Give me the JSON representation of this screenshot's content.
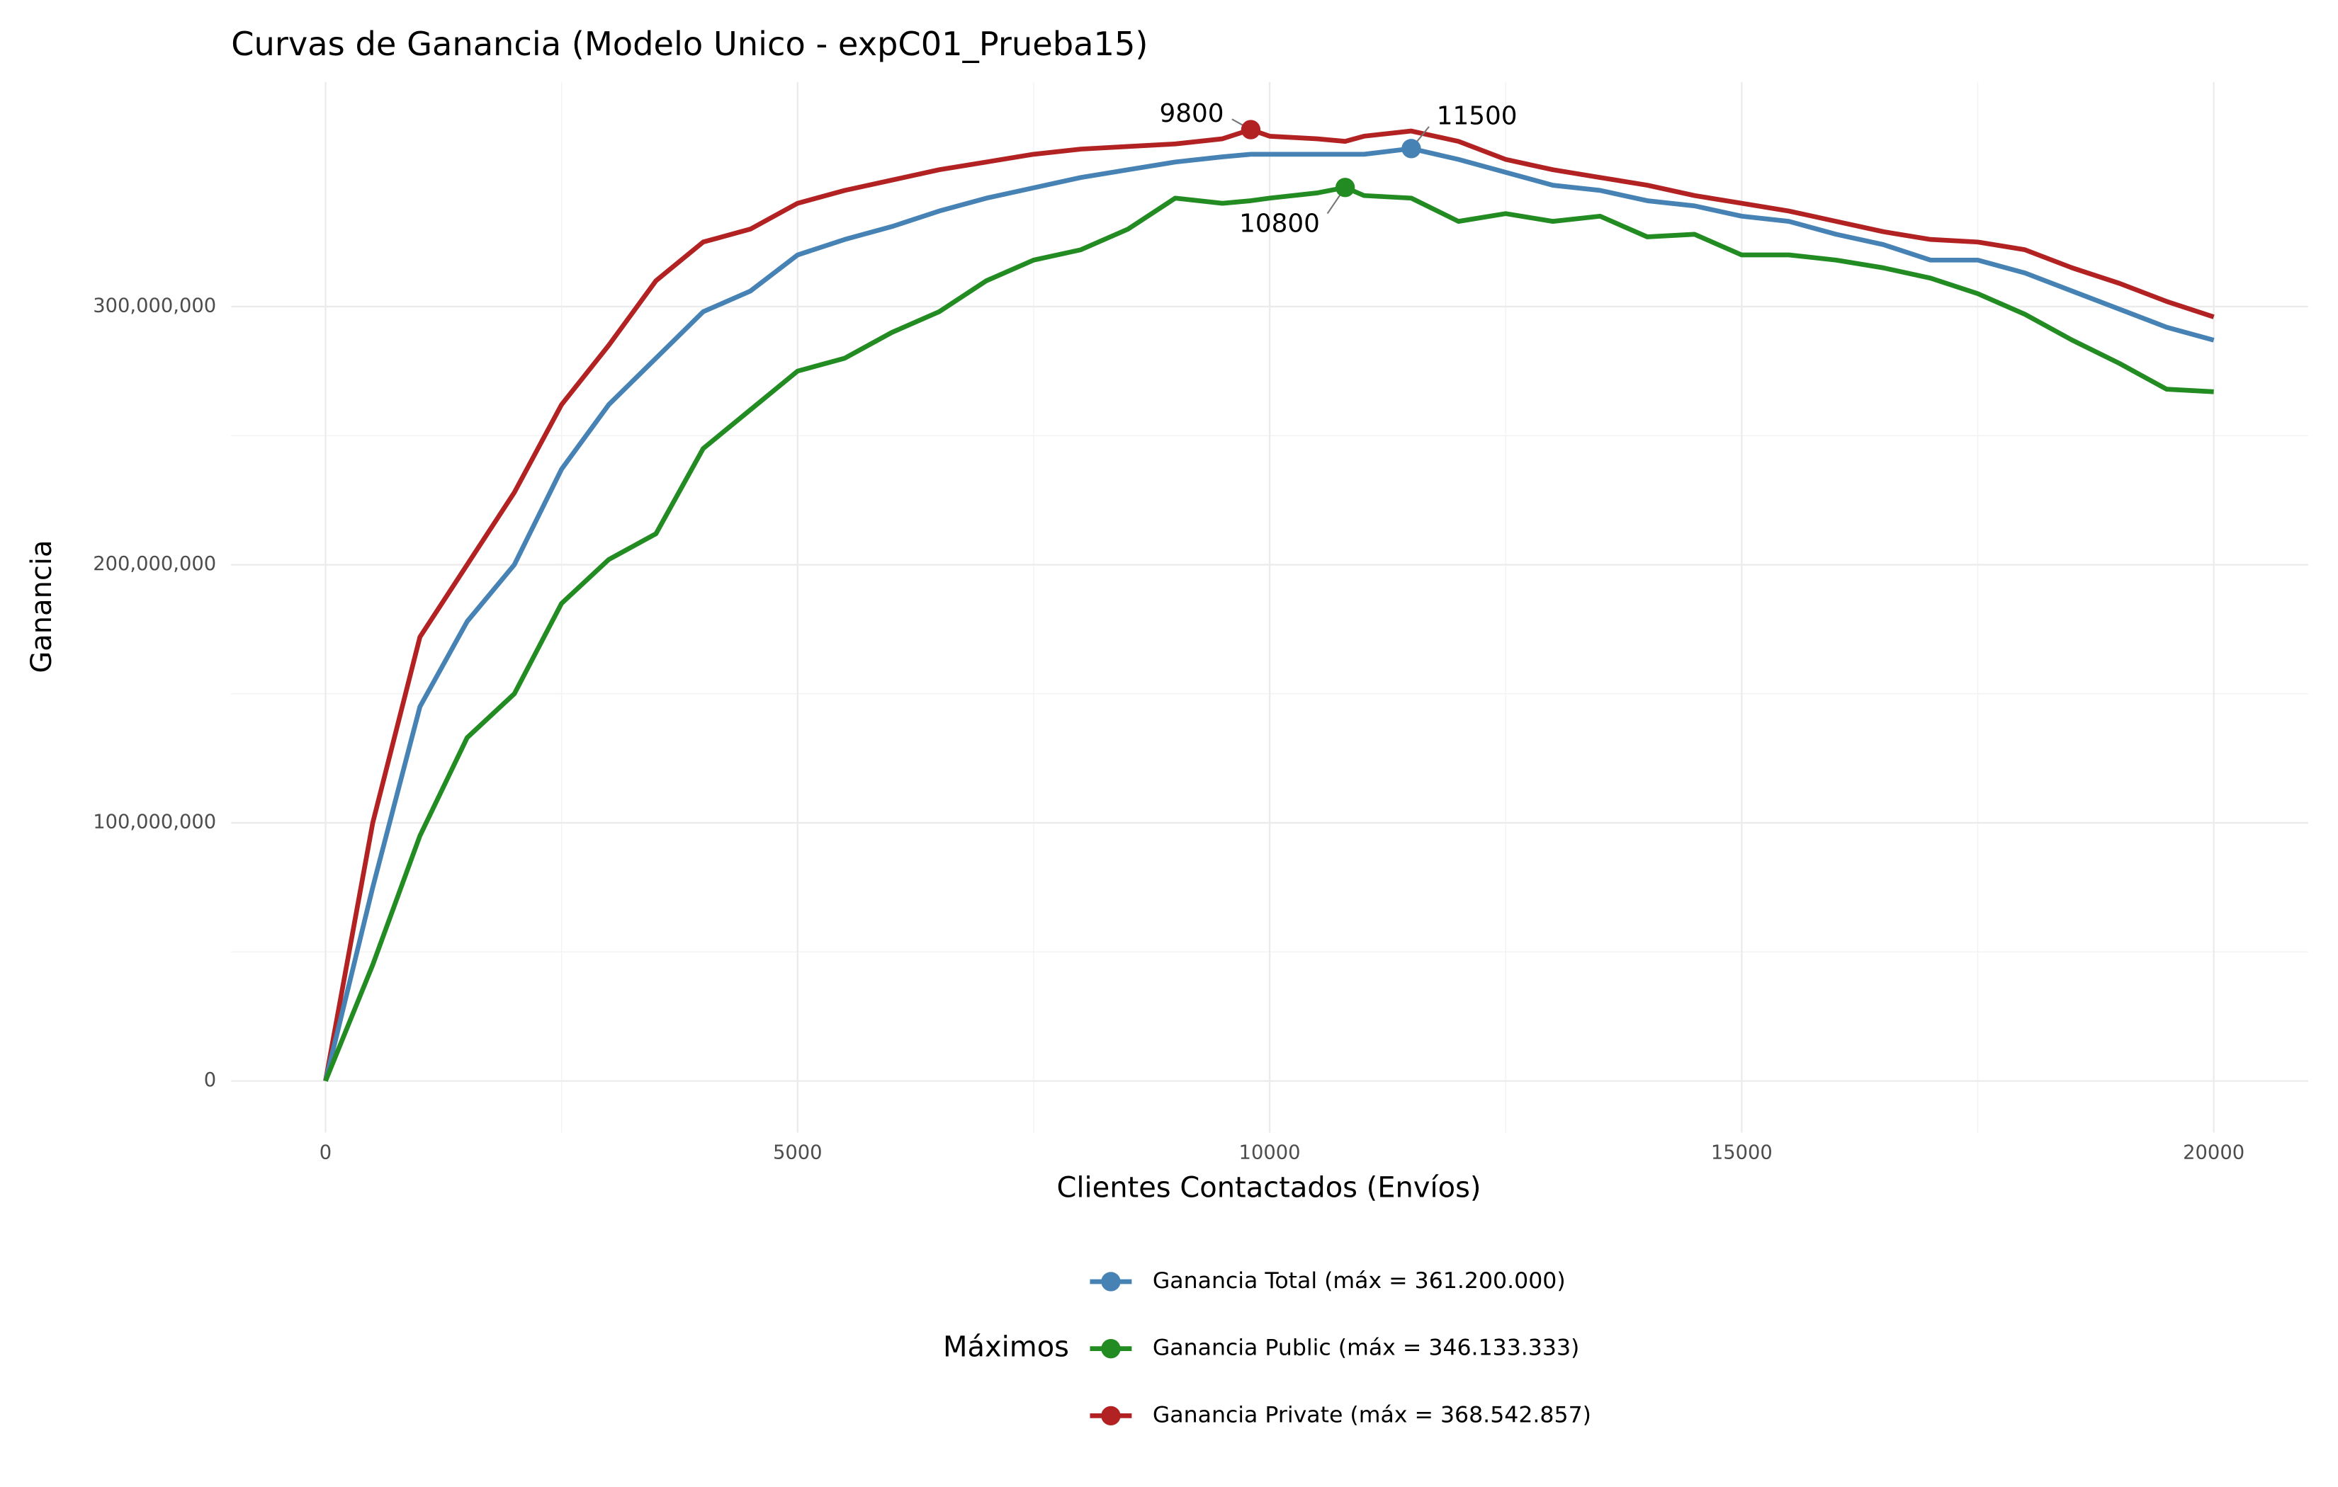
{
  "chart_data": {
    "type": "line",
    "title": "Curvas de Ganancia (Modelo Unico - expC01_Prueba15)",
    "x_label": "Clientes Contactados (Envíos)",
    "y_label": "Ganancia",
    "legend_title": "Máximos",
    "legend": "bottom",
    "grid": true,
    "x": [
      0,
      500,
      1000,
      1500,
      2000,
      2500,
      3000,
      3500,
      4000,
      4500,
      5000,
      5500,
      6000,
      6500,
      7000,
      7500,
      8000,
      8500,
      9000,
      9500,
      9800,
      10000,
      10500,
      10800,
      11000,
      11500,
      12000,
      12500,
      13000,
      13500,
      14000,
      14500,
      15000,
      15500,
      16000,
      16500,
      17000,
      17500,
      18000,
      18500,
      19000,
      19500,
      20000
    ],
    "series": [
      {
        "name": "Ganancia Total (máx = 361.200.000)",
        "color": "#4682b4",
        "values": [
          0,
          75000000,
          145000000,
          178000000,
          200000000,
          237000000,
          262000000,
          280000000,
          298000000,
          306000000,
          320000000,
          326000000,
          331000000,
          337000000,
          342000000,
          346000000,
          350000000,
          353000000,
          356000000,
          358000000,
          359000000,
          359000000,
          359000000,
          359000000,
          359000000,
          361200000,
          357000000,
          352000000,
          347000000,
          345000000,
          341000000,
          339000000,
          335000000,
          333000000,
          328000000,
          324000000,
          318000000,
          318000000,
          313000000,
          306000000,
          299000000,
          292000000,
          287000000
        ]
      },
      {
        "name": "Ganancia Public (máx = 346.133.333)",
        "color": "#228b22",
        "values": [
          0,
          45000000,
          95000000,
          133000000,
          150000000,
          185000000,
          202000000,
          212000000,
          245000000,
          260000000,
          275000000,
          280000000,
          290000000,
          298000000,
          310000000,
          318000000,
          322000000,
          330000000,
          342000000,
          340000000,
          341000000,
          342000000,
          344000000,
          346133333,
          343000000,
          342000000,
          333000000,
          336000000,
          333000000,
          335000000,
          327000000,
          328000000,
          320000000,
          320000000,
          318000000,
          315000000,
          311000000,
          305000000,
          297000000,
          287000000,
          278000000,
          268000000,
          267000000
        ]
      },
      {
        "name": "Ganancia Private (máx = 368.542.857)",
        "color": "#b22222",
        "values": [
          0,
          100000000,
          172000000,
          200000000,
          228000000,
          262000000,
          285000000,
          310000000,
          325000000,
          330000000,
          340000000,
          345000000,
          349000000,
          353000000,
          356000000,
          359000000,
          361000000,
          362000000,
          363000000,
          365000000,
          368542857,
          366000000,
          365000000,
          364000000,
          366000000,
          368000000,
          364000000,
          357000000,
          353000000,
          350000000,
          347000000,
          343000000,
          340000000,
          337000000,
          333000000,
          329000000,
          326000000,
          325000000,
          322000000,
          315000000,
          309000000,
          302000000,
          296000000
        ]
      }
    ],
    "maxima": [
      {
        "x": 11500,
        "y": 361200000
      },
      {
        "x": 10800,
        "y": 346133333
      },
      {
        "x": 9800,
        "y": 368542857
      }
    ],
    "xlim": [
      -1000,
      21000
    ],
    "ylim": [
      -20000000,
      387000000
    ],
    "xticks": [
      0,
      5000,
      10000,
      15000,
      20000
    ],
    "yticks": [
      0,
      {
        "value": 100000000,
        "label": "100,000,000"
      },
      {
        "value": 200000000,
        "label": "200,000,000"
      },
      {
        "value": 300000000,
        "label": "300,000,000"
      }
    ]
  }
}
